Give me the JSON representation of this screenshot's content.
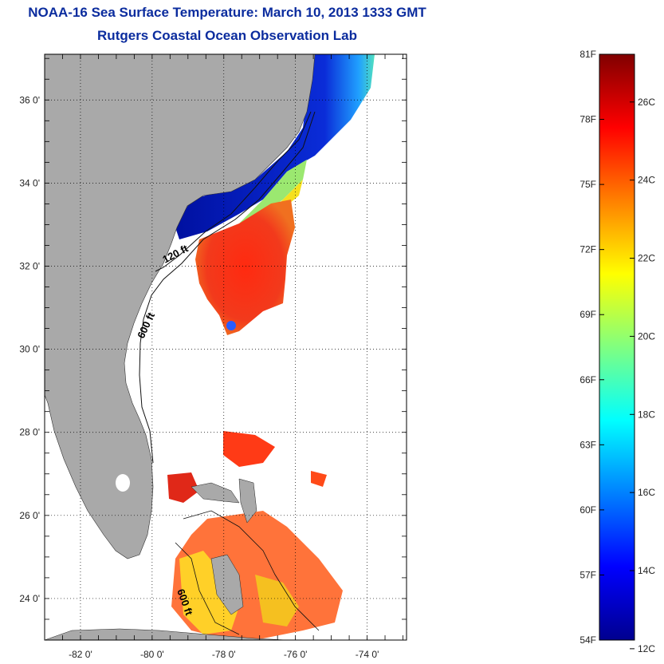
{
  "header": {
    "title": "NOAA-16 Sea Surface Temperature:  March 10, 2013 1333 GMT",
    "subtitle": "Rutgers Coastal Ocean Observation Lab"
  },
  "map": {
    "lat_range": [
      23,
      37.1
    ],
    "lon_range": [
      -83,
      -72.9
    ],
    "lat_ticks": [
      {
        "value": 36,
        "label": "36 0'"
      },
      {
        "value": 34,
        "label": "34 0'"
      },
      {
        "value": 32,
        "label": "32 0'"
      },
      {
        "value": 30,
        "label": "30 0'"
      },
      {
        "value": 28,
        "label": "28 0'"
      },
      {
        "value": 26,
        "label": "26 0'"
      },
      {
        "value": 24,
        "label": "24 0'"
      }
    ],
    "lon_ticks": [
      {
        "value": -82,
        "label": "-82 0'"
      },
      {
        "value": -80,
        "label": "-80 0'"
      },
      {
        "value": -78,
        "label": "-78 0'"
      },
      {
        "value": -76,
        "label": "-76 0'"
      },
      {
        "value": -74,
        "label": "-74 0'"
      }
    ],
    "contour_labels": [
      "120 ft",
      "600 ft",
      "600 ft"
    ],
    "colors": {
      "land": "#a9a9a9",
      "ocean": "#ffffff",
      "warm": "#e8331e",
      "cold": "#0a1fb8"
    }
  },
  "colorbar": {
    "range_f": [
      54,
      81
    ],
    "fahrenheit_ticks": [
      "81F",
      "78F",
      "75F",
      "72F",
      "69F",
      "66F",
      "63F",
      "60F",
      "57F",
      "54F"
    ],
    "celsius_ticks": [
      "26C",
      "24C",
      "22C",
      "20C",
      "18C",
      "16C",
      "14C",
      "12C"
    ],
    "colormap": [
      "#00008f",
      "#0000ff",
      "#0080ff",
      "#00ffff",
      "#80ff80",
      "#ffff00",
      "#ff8000",
      "#ff0000",
      "#800000"
    ]
  }
}
